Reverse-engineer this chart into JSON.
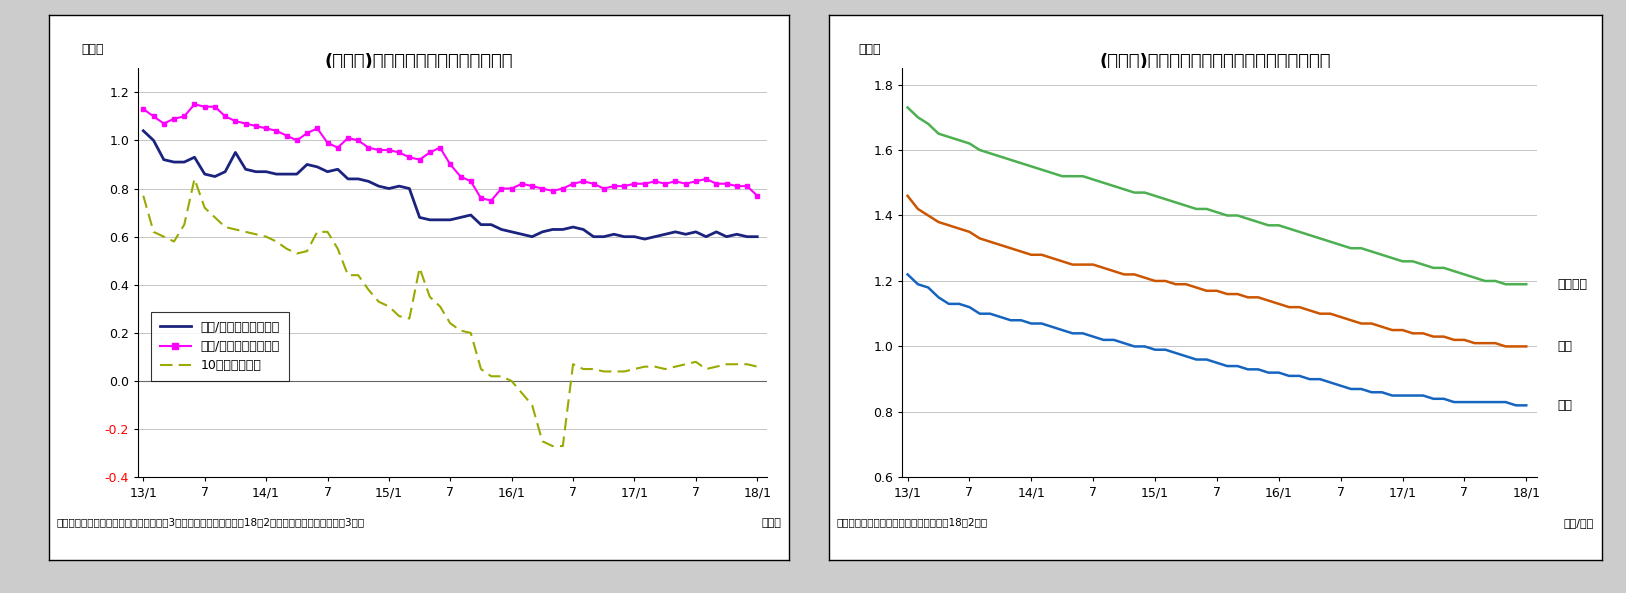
{
  "fig5_title": "(図表５)国内銀行の新規貸出平均金利",
  "fig6_title": "(図表６)国内銀行の平均貸出金利（ストック）",
  "fig5_xlabel_unit": "（年）",
  "fig6_xlabel_unit": "（年/月）",
  "fig5_ylabel": "（％）",
  "fig6_ylabel": "（％）",
  "fig5_note": "（資料）日本銀行　　（注）貸出金利は3ヵ月移動平均値で直近は18年2月分、国債利回りの直近は3月分",
  "fig6_note": "（資料）日本銀行　　　　（注）直近は18年2月分",
  "fig5_ylim": [
    -0.4,
    1.3
  ],
  "fig5_yticks": [
    -0.4,
    -0.2,
    0.0,
    0.2,
    0.4,
    0.6,
    0.8,
    1.0,
    1.2
  ],
  "fig6_ylim": [
    0.6,
    1.85
  ],
  "fig6_yticks": [
    0.6,
    0.8,
    1.0,
    1.2,
    1.4,
    1.6,
    1.8
  ],
  "fig5_xtick_labels": [
    "13/1",
    "7",
    "14/1",
    "7",
    "15/1",
    "7",
    "16/1",
    "7",
    "17/1",
    "7",
    "18/1"
  ],
  "fig6_xtick_labels": [
    "13/1",
    "7",
    "14/1",
    "7",
    "15/1",
    "7",
    "16/1",
    "7",
    "17/1",
    "7",
    "18/1"
  ],
  "fig5_short": [
    1.04,
    1.0,
    0.92,
    0.91,
    0.91,
    0.93,
    0.86,
    0.85,
    0.87,
    0.95,
    0.88,
    0.87,
    0.87,
    0.86,
    0.86,
    0.86,
    0.9,
    0.89,
    0.87,
    0.88,
    0.84,
    0.84,
    0.83,
    0.81,
    0.8,
    0.81,
    0.8,
    0.68,
    0.67,
    0.67,
    0.67,
    0.68,
    0.69,
    0.65,
    0.65,
    0.63,
    0.62,
    0.61,
    0.6,
    0.62,
    0.63,
    0.63,
    0.64,
    0.63,
    0.6,
    0.6,
    0.61,
    0.6,
    0.6,
    0.59,
    0.6,
    0.61,
    0.62,
    0.61,
    0.62,
    0.6,
    0.62,
    0.6,
    0.61,
    0.6,
    0.6
  ],
  "fig5_long": [
    1.13,
    1.1,
    1.07,
    1.09,
    1.1,
    1.15,
    1.14,
    1.14,
    1.1,
    1.08,
    1.07,
    1.06,
    1.05,
    1.04,
    1.02,
    1.0,
    1.03,
    1.05,
    0.99,
    0.97,
    1.01,
    1.0,
    0.97,
    0.96,
    0.96,
    0.95,
    0.93,
    0.92,
    0.95,
    0.97,
    0.9,
    0.85,
    0.83,
    0.76,
    0.75,
    0.8,
    0.8,
    0.82,
    0.81,
    0.8,
    0.79,
    0.8,
    0.82,
    0.83,
    0.82,
    0.8,
    0.81,
    0.81,
    0.82,
    0.82,
    0.83,
    0.82,
    0.83,
    0.82,
    0.83,
    0.84,
    0.82,
    0.82,
    0.81,
    0.81,
    0.77
  ],
  "fig5_jgb": [
    0.77,
    0.62,
    0.6,
    0.58,
    0.65,
    0.84,
    0.72,
    0.68,
    0.64,
    0.63,
    0.62,
    0.61,
    0.6,
    0.58,
    0.55,
    0.53,
    0.54,
    0.62,
    0.62,
    0.55,
    0.44,
    0.44,
    0.38,
    0.33,
    0.31,
    0.27,
    0.26,
    0.47,
    0.35,
    0.31,
    0.24,
    0.21,
    0.2,
    0.05,
    0.02,
    0.02,
    0.0,
    -0.05,
    -0.1,
    -0.25,
    -0.27,
    -0.27,
    0.07,
    0.05,
    0.05,
    0.04,
    0.04,
    0.04,
    0.05,
    0.06,
    0.06,
    0.05,
    0.06,
    0.07,
    0.08,
    0.05,
    0.06,
    0.07,
    0.07,
    0.07,
    0.06
  ],
  "fig5_n": 61,
  "fig6_daiginkō": [
    1.22,
    1.19,
    1.18,
    1.15,
    1.13,
    1.13,
    1.12,
    1.1,
    1.1,
    1.09,
    1.08,
    1.08,
    1.07,
    1.07,
    1.06,
    1.05,
    1.04,
    1.04,
    1.03,
    1.02,
    1.02,
    1.01,
    1.0,
    1.0,
    0.99,
    0.99,
    0.98,
    0.97,
    0.96,
    0.96,
    0.95,
    0.94,
    0.94,
    0.93,
    0.93,
    0.92,
    0.92,
    0.91,
    0.91,
    0.9,
    0.9,
    0.89,
    0.88,
    0.87,
    0.87,
    0.86,
    0.86,
    0.85,
    0.85,
    0.85,
    0.85,
    0.84,
    0.84,
    0.83,
    0.83,
    0.83,
    0.83,
    0.83,
    0.83,
    0.82,
    0.82
  ],
  "fig6_chiginkō": [
    1.46,
    1.42,
    1.4,
    1.38,
    1.37,
    1.36,
    1.35,
    1.33,
    1.32,
    1.31,
    1.3,
    1.29,
    1.28,
    1.28,
    1.27,
    1.26,
    1.25,
    1.25,
    1.25,
    1.24,
    1.23,
    1.22,
    1.22,
    1.21,
    1.2,
    1.2,
    1.19,
    1.19,
    1.18,
    1.17,
    1.17,
    1.16,
    1.16,
    1.15,
    1.15,
    1.14,
    1.13,
    1.12,
    1.12,
    1.11,
    1.1,
    1.1,
    1.09,
    1.08,
    1.07,
    1.07,
    1.06,
    1.05,
    1.05,
    1.04,
    1.04,
    1.03,
    1.03,
    1.02,
    1.02,
    1.01,
    1.01,
    1.01,
    1.0,
    1.0,
    1.0
  ],
  "fig6_daini": [
    1.73,
    1.7,
    1.68,
    1.65,
    1.64,
    1.63,
    1.62,
    1.6,
    1.59,
    1.58,
    1.57,
    1.56,
    1.55,
    1.54,
    1.53,
    1.52,
    1.52,
    1.52,
    1.51,
    1.5,
    1.49,
    1.48,
    1.47,
    1.47,
    1.46,
    1.45,
    1.44,
    1.43,
    1.42,
    1.42,
    1.41,
    1.4,
    1.4,
    1.39,
    1.38,
    1.37,
    1.37,
    1.36,
    1.35,
    1.34,
    1.33,
    1.32,
    1.31,
    1.3,
    1.3,
    1.29,
    1.28,
    1.27,
    1.26,
    1.26,
    1.25,
    1.24,
    1.24,
    1.23,
    1.22,
    1.21,
    1.2,
    1.2,
    1.19,
    1.19,
    1.19
  ],
  "fig6_n": 61,
  "color_short": "#1a237e",
  "color_long": "#ff00ff",
  "color_jgb": "#9aaa00",
  "color_daiginkō": "#1565c0",
  "color_chiginkō": "#cc5500",
  "color_daini": "#4caf50",
  "plot_bg_color": "#ffffff",
  "grid_color": "#bbbbbb",
  "border_color": "#000000",
  "fig5_legend_labels": [
    "新規/短期（一年未満）",
    "新規/長期（一年以上）",
    "10年国債利回り"
  ],
  "fig6_line_labels": [
    "第二地銀",
    "地銀",
    "都銀"
  ],
  "outer_bg": "#cccccc"
}
